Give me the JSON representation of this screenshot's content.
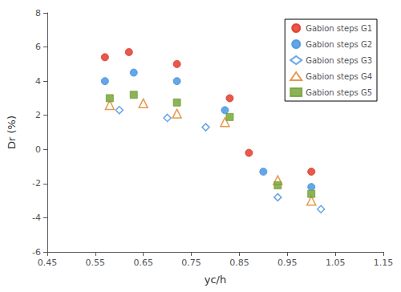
{
  "chart_data": {
    "type": "scatter",
    "xlabel": "yc/h",
    "ylabel": "Dr (%)",
    "xlim": [
      0.45,
      1.15
    ],
    "ylim": [
      -6,
      8
    ],
    "xticks": [
      0.45,
      0.55,
      0.65,
      0.75,
      0.85,
      0.95,
      1.05,
      1.15
    ],
    "yticks": [
      -6,
      -4,
      -2,
      0,
      2,
      4,
      6,
      8
    ],
    "grid": false,
    "legend": "upper right",
    "series": [
      {
        "name": "Gabion steps G1",
        "color": "#e03020",
        "marker": "circle",
        "x": [
          0.57,
          0.62,
          0.72,
          0.83,
          0.87,
          1.0
        ],
        "values": [
          5.4,
          5.7,
          5.0,
          3.0,
          -0.2,
          -1.3
        ]
      },
      {
        "name": "Gabion steps G2",
        "color": "#4090e0",
        "marker": "circle",
        "x": [
          0.57,
          0.63,
          0.72,
          0.82,
          0.9,
          1.0
        ],
        "values": [
          4.0,
          4.5,
          4.0,
          2.3,
          -1.3,
          -2.2
        ]
      },
      {
        "name": "Gabion steps G3",
        "color": "#4090e0",
        "marker": "open-diamond",
        "x": [
          0.6,
          0.7,
          0.78,
          0.93,
          1.02
        ],
        "values": [
          2.3,
          1.85,
          1.3,
          -2.8,
          -3.5
        ]
      },
      {
        "name": "Gabion steps G4",
        "color": "#e08020",
        "marker": "open-triangle",
        "x": [
          0.58,
          0.65,
          0.72,
          0.82,
          0.93,
          1.0
        ],
        "values": [
          2.6,
          2.7,
          2.1,
          1.6,
          -1.8,
          -3.0
        ]
      },
      {
        "name": "Gabion steps G5",
        "color": "#70a030",
        "marker": "square",
        "x": [
          0.58,
          0.63,
          0.72,
          0.83,
          0.93,
          1.0
        ],
        "values": [
          3.0,
          3.2,
          2.75,
          1.9,
          -2.1,
          -2.6
        ]
      }
    ]
  }
}
